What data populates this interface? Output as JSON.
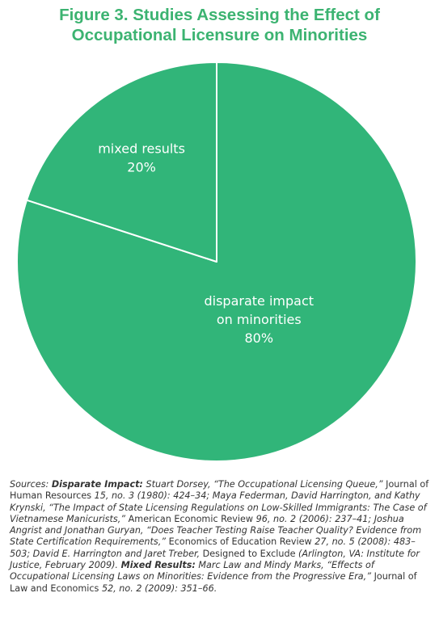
{
  "title": {
    "line1": "Figure 3. Studies Assessing the Effect of",
    "line2": "Occupational Licensure on Minorities"
  },
  "colors": {
    "title": "#3cb371",
    "pie_fill": "#31b579",
    "slice_border": "#ffffff",
    "label_text": "#ffffff",
    "sources_text": "#333333"
  },
  "chart_data": {
    "type": "pie",
    "slices": [
      {
        "label_lines": [
          "disparate impact",
          "on minorities"
        ],
        "value": 80,
        "value_label": "80%"
      },
      {
        "label_lines": [
          "mixed results"
        ],
        "value": 20,
        "value_label": "20%"
      }
    ]
  },
  "sources": {
    "intro": "Sources: ",
    "disparate_heading": "Disparate Impact:",
    "d1": " Stuart Dorsey, “The Occupational Licensing Queue,” ",
    "d2": "Journal of Human Resources",
    "d3": " 15, no. 3 (1980): 424–34; Maya Federman, David Harrington, and Kathy Krynski, “The Impact of State Licensing Regulations on Low-Skilled Immigrants: The Case of Vietnamese Manicurists,” ",
    "d4": "American Economic Review",
    "d5": " 96, no. 2 (2006): 237–41; Joshua Angrist and Jonathan Guryan, “Does Teacher Testing Raise Teacher Quality? Evidence from State Certification Requirements,” ",
    "d6": "Economics of Education Review",
    "d7": " 27, no. 5 (2008): 483–503; David E. Harrington and Jaret Treber, ",
    "d8": "Designed to Exclude",
    "d9": " (Arlington, VA: Institute for Justice, February 2009). ",
    "mixed_heading": "Mixed Results:",
    "m1": " Marc Law and Mindy Marks, “Effects of Occupational Licensing Laws on Minorities: Evidence from the Progressive Era,” ",
    "m2": "Journal of Law and Economics",
    "m3": " 52, no. 2 (2009): 351–66."
  }
}
